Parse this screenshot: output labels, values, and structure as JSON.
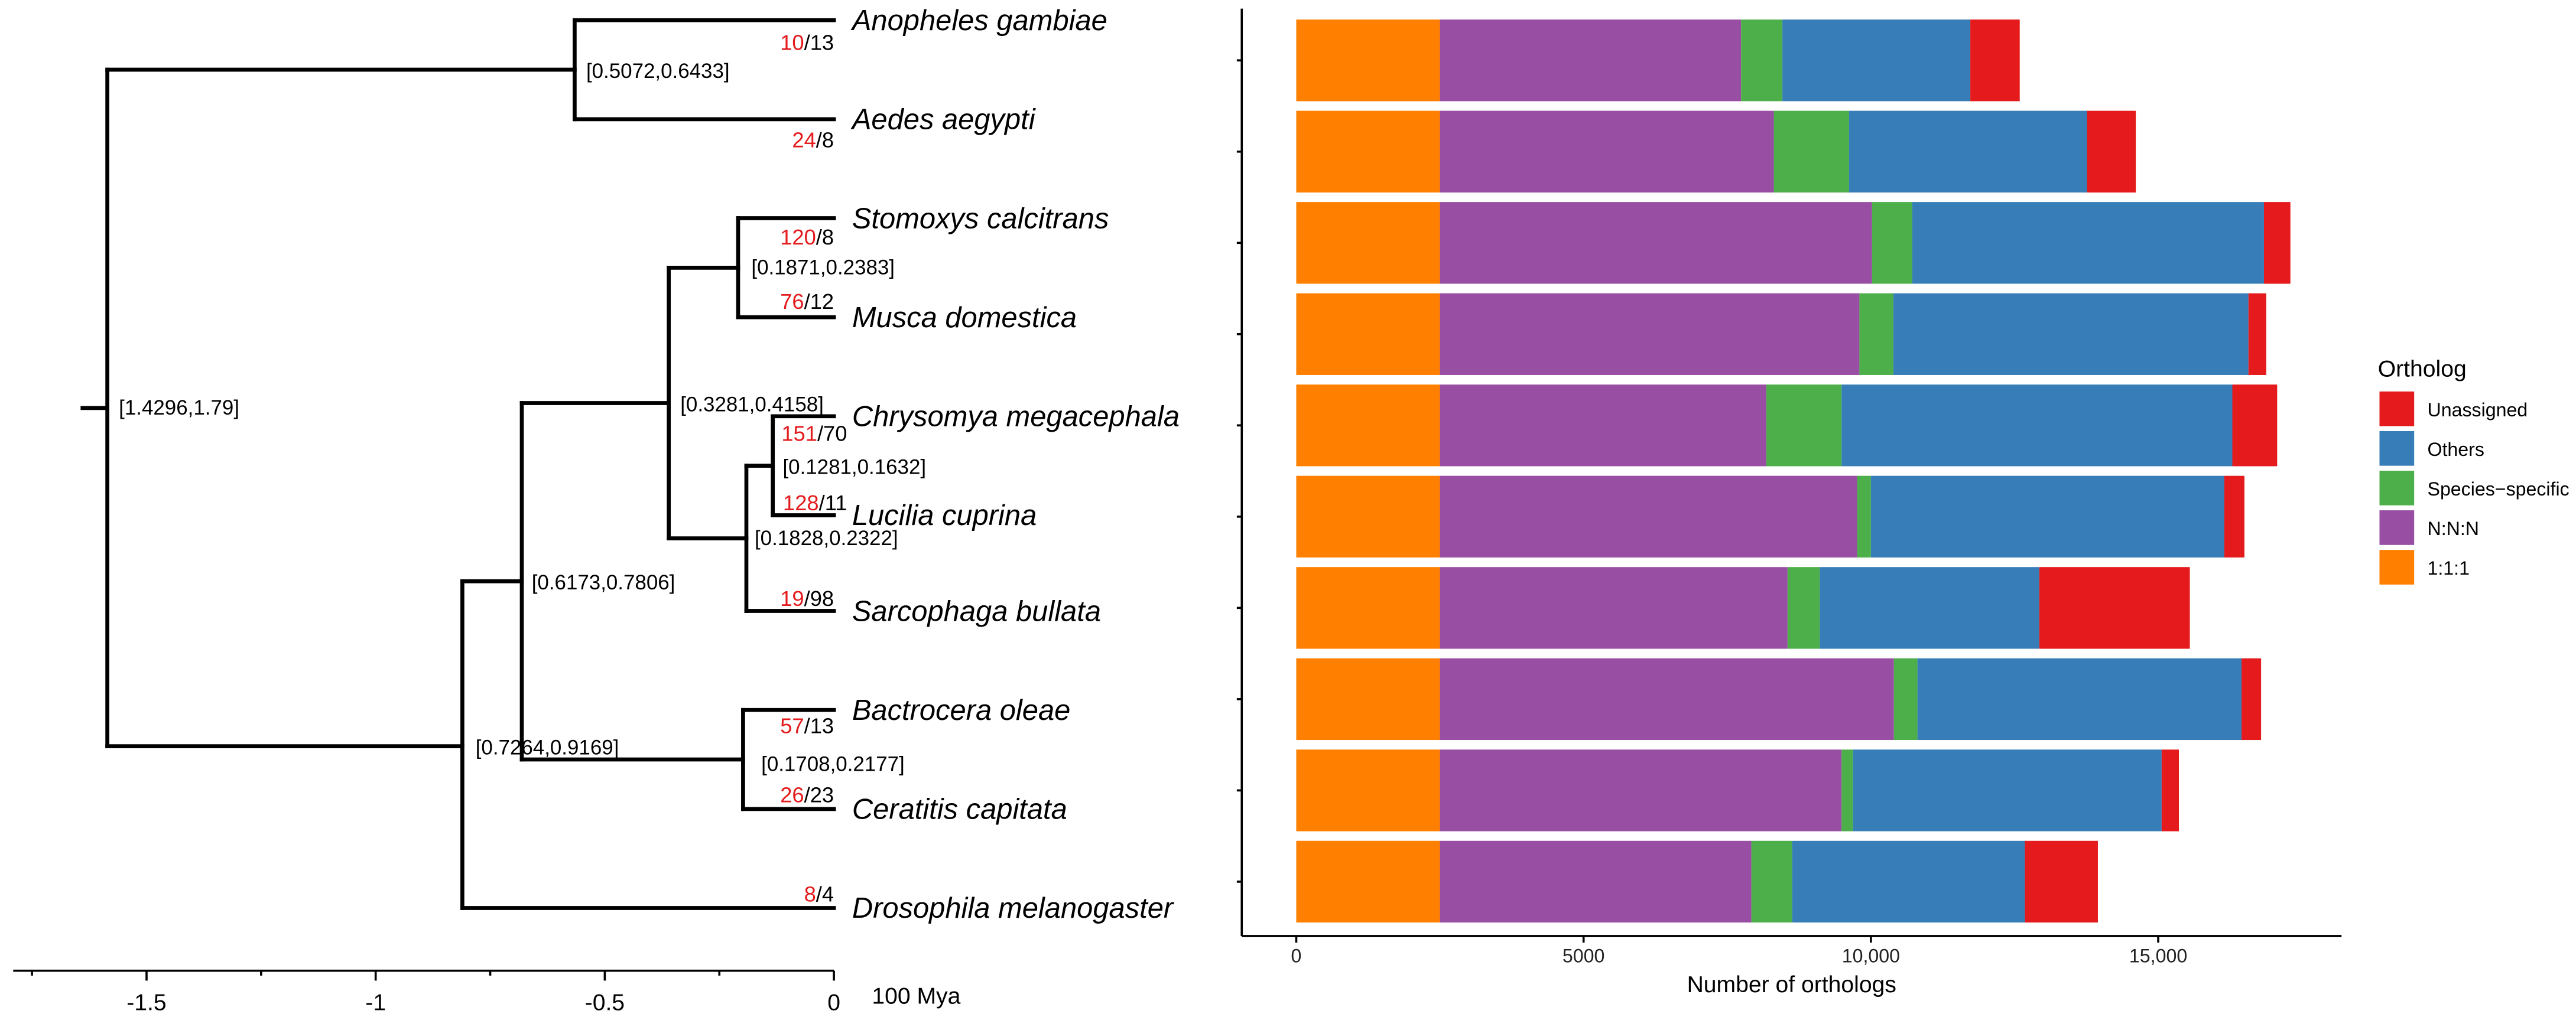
{
  "tree": {
    "axis_ticks": [
      "-1.5",
      "-1",
      "-0.5",
      "0"
    ],
    "axis_tick_values": [
      -1.5,
      -1,
      -0.5,
      0
    ],
    "axis_unit": "100 Mya",
    "separator": "/",
    "species": [
      {
        "name": "Anopheles gambiae",
        "expanded": "10",
        "contracted": "13"
      },
      {
        "name": "Aedes aegypti",
        "expanded": "24",
        "contracted": "8"
      },
      {
        "name": "Stomoxys calcitrans",
        "expanded": "120",
        "contracted": "8"
      },
      {
        "name": "Musca domestica",
        "expanded": "76",
        "contracted": "12"
      },
      {
        "name": "Chrysomya megacephala",
        "expanded": "151",
        "contracted": "70"
      },
      {
        "name": "Lucilia cuprina",
        "expanded": "128",
        "contracted": "11"
      },
      {
        "name": "Sarcophaga bullata",
        "expanded": "19",
        "contracted": "98"
      },
      {
        "name": "Bactrocera oleae",
        "expanded": "57",
        "contracted": "13"
      },
      {
        "name": "Ceratitis capitata",
        "expanded": "26",
        "contracted": "23"
      },
      {
        "name": "Drosophila melanogaster",
        "expanded": "8",
        "contracted": "4"
      }
    ],
    "node_intervals": [
      "[0.5072,0.6433]",
      "[1.4296,1.79]",
      "[0.1871,0.2383]",
      "[0.3281,0.4158]",
      "[0.1281,0.1632]",
      "[0.1828,0.2322]",
      "[0.6173,0.7806]",
      "[0.7264,0.9169]",
      "[0.1708,0.2177]"
    ],
    "colors": {
      "expanded": "#e41a1c",
      "contracted": "#000000"
    }
  },
  "chart_data": {
    "type": "bar",
    "orientation": "horizontal",
    "stacked": true,
    "categories": [
      "Anopheles gambiae",
      "Aedes aegypti",
      "Stomoxys calcitrans",
      "Musca domestica",
      "Chrysomya megacephala",
      "Lucilia cuprina",
      "Sarcophaga bullata",
      "Bactrocera oleae",
      "Ceratitis capitata",
      "Drosophila melanogaster"
    ],
    "series": [
      {
        "name": "1:1:1",
        "color": "#ff7f00",
        "values": [
          2500,
          2500,
          2500,
          2500,
          2500,
          2500,
          2500,
          2500,
          2500,
          2500
        ]
      },
      {
        "name": "N:N:N",
        "color": "#984ea3",
        "values": [
          5240,
          5810,
          7520,
          7300,
          5680,
          7260,
          6050,
          7900,
          6990,
          5420
        ]
      },
      {
        "name": "Species−specific",
        "color": "#4daf4a",
        "values": [
          720,
          1310,
          700,
          590,
          1310,
          240,
          560,
          410,
          200,
          710
        ]
      },
      {
        "name": "Others",
        "color": "#377eb8",
        "values": [
          3270,
          4140,
          6120,
          6180,
          6800,
          6150,
          3820,
          5640,
          5370,
          4050
        ]
      },
      {
        "name": "Unassigned",
        "color": "#e41a1c",
        "values": [
          860,
          850,
          460,
          310,
          780,
          350,
          2620,
          340,
          300,
          1270
        ]
      }
    ],
    "xlabel": "Number of orthologs",
    "xlim": [
      0,
      18000
    ],
    "x_ticks": [
      0,
      5000,
      10000,
      15000
    ],
    "x_tick_labels": [
      "0",
      "5000",
      "10,000",
      "15,000"
    ],
    "legend_title": "Ortholog",
    "legend_order": [
      "Unassigned",
      "Others",
      "Species−specific",
      "N:N:N",
      "1:1:1"
    ],
    "legend_placement": "right",
    "grid": false
  }
}
